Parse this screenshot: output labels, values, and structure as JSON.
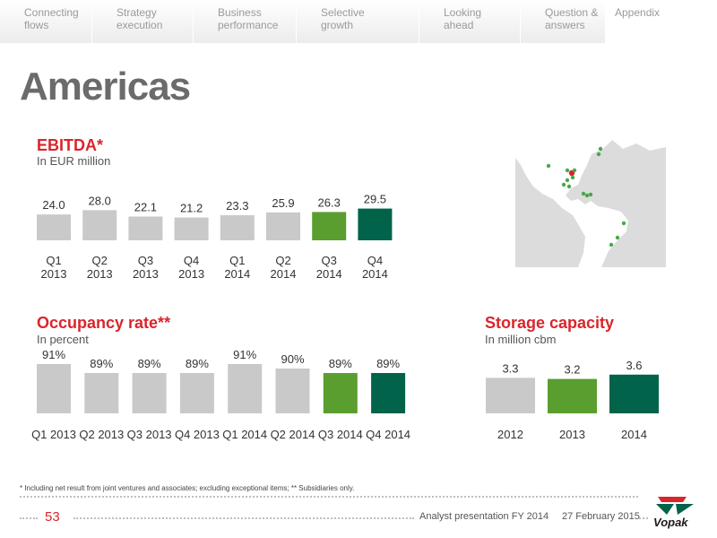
{
  "nav": {
    "tabs": [
      {
        "line1": "Connecting",
        "line2": "flows"
      },
      {
        "line1": "Strategy",
        "line2": "execution"
      },
      {
        "line1": "Business",
        "line2": "performance"
      },
      {
        "line1": "Selective",
        "line2": "growth"
      },
      {
        "line1": "Looking",
        "line2": "ahead"
      },
      {
        "line1": "Question &",
        "line2": "answers"
      },
      {
        "line1": "Appendix",
        "line2": ""
      }
    ]
  },
  "page": {
    "title": "Americas"
  },
  "colors": {
    "bar_default": "#c9c9c9",
    "bar_light_green": "#5a9e2f",
    "bar_dark_green": "#00634a",
    "title_red": "#d9252b"
  },
  "chart_data": [
    {
      "type": "bar",
      "title": "EBITDA*",
      "subtitle": "In EUR million",
      "categories": [
        "Q1\n2013",
        "Q2\n2013",
        "Q3\n2013",
        "Q4\n2013",
        "Q1\n2014",
        "Q2\n2014",
        "Q3\n2014",
        "Q4\n2014"
      ],
      "values": [
        24.0,
        28.0,
        22.1,
        21.2,
        23.3,
        25.9,
        26.3,
        29.5
      ],
      "value_labels": [
        "24.0",
        "28.0",
        "22.1",
        "21.2",
        "23.3",
        "25.9",
        "26.3",
        "29.5"
      ],
      "bar_colors": [
        "#c9c9c9",
        "#c9c9c9",
        "#c9c9c9",
        "#c9c9c9",
        "#c9c9c9",
        "#c9c9c9",
        "#5a9e2f",
        "#00634a"
      ],
      "grid": false
    },
    {
      "type": "bar",
      "title": "Occupancy rate**",
      "subtitle": "In percent",
      "categories": [
        "Q1 2013",
        "Q2 2013",
        "Q3 2013",
        "Q4 2013",
        "Q1 2014",
        "Q2 2014",
        "Q3 2014",
        "Q4 2014"
      ],
      "values": [
        91,
        89,
        89,
        89,
        91,
        90,
        89,
        89
      ],
      "value_labels": [
        "91%",
        "89%",
        "89%",
        "89%",
        "91%",
        "90%",
        "89%",
        "89%"
      ],
      "bar_colors": [
        "#c9c9c9",
        "#c9c9c9",
        "#c9c9c9",
        "#c9c9c9",
        "#c9c9c9",
        "#c9c9c9",
        "#5a9e2f",
        "#00634a"
      ],
      "grid": false
    },
    {
      "type": "bar",
      "title": "Storage capacity",
      "subtitle": "In million cbm",
      "categories": [
        "2012",
        "2013",
        "2014"
      ],
      "values": [
        3.3,
        3.2,
        3.6
      ],
      "value_labels": [
        "3.3",
        "3.2",
        "3.6"
      ],
      "bar_colors": [
        "#c9c9c9",
        "#5a9e2f",
        "#00634a"
      ],
      "grid": false
    }
  ],
  "footer": {
    "footnote": "* Including net result from joint ventures and associates; excluding exceptional items; ** Subsidiaries only.",
    "page_number": "53",
    "presentation": "Analyst presentation FY 2014",
    "date": "27 February 2015",
    "logo_text": "Vopak"
  }
}
